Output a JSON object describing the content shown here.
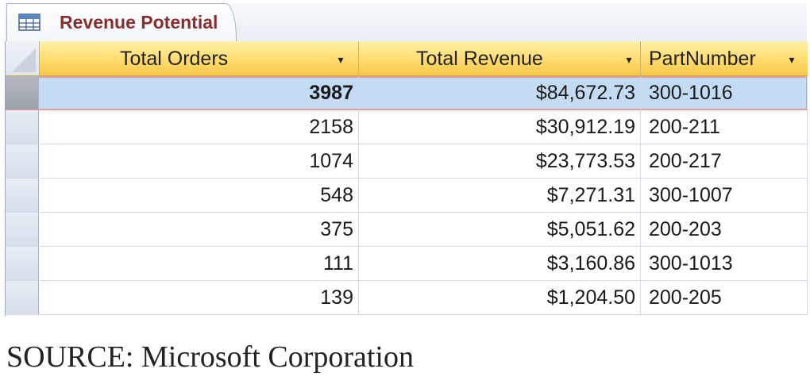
{
  "tab": {
    "title": "Revenue Potential",
    "icon": "table-icon"
  },
  "columns": [
    {
      "label": "Total Orders"
    },
    {
      "label": "Total Revenue"
    },
    {
      "label": "PartNumber"
    }
  ],
  "rows": [
    {
      "orders": "3987",
      "revenue": "$84,672.73",
      "part": "300-1016",
      "selected": true
    },
    {
      "orders": "2158",
      "revenue": "$30,912.19",
      "part": "200-211"
    },
    {
      "orders": "1074",
      "revenue": "$23,773.53",
      "part": "200-217"
    },
    {
      "orders": "548",
      "revenue": "$7,271.31",
      "part": "300-1007"
    },
    {
      "orders": "375",
      "revenue": "$5,051.62",
      "part": "200-203"
    },
    {
      "orders": "111",
      "revenue": "$3,160.86",
      "part": "300-1013"
    },
    {
      "orders": "139",
      "revenue": "$1,204.50",
      "part": "200-205"
    }
  ],
  "caption": "SOURCE: Microsoft Corporation",
  "colors": {
    "header": "#ffd968",
    "selected_row": "#c4dcf3",
    "tab_title": "#8b2d2d"
  }
}
